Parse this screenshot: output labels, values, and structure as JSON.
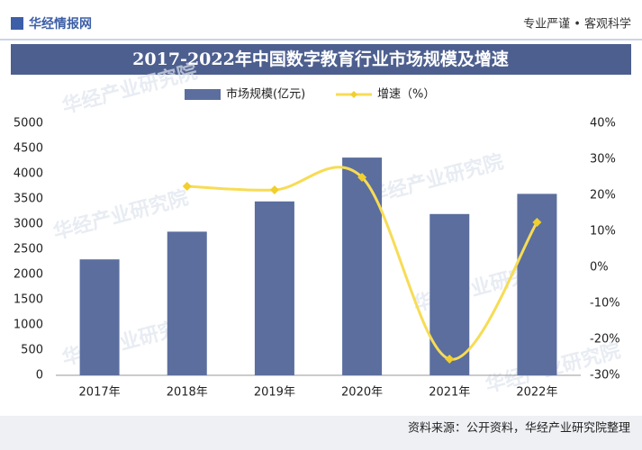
{
  "header": {
    "brand": "华经情报网",
    "slogan": "专业严谨 • 客观科学"
  },
  "chart_data": {
    "type": "bar_line",
    "title": "2017-2022年中国数字教育行业市场规模及增速",
    "categories": [
      "2017年",
      "2018年",
      "2019年",
      "2020年",
      "2021年",
      "2022年"
    ],
    "series": [
      {
        "name": "市场规模(亿元)",
        "type": "bar",
        "color": "#5b6e9e",
        "values": [
          2300,
          2850,
          3450,
          4320,
          3200,
          3600
        ]
      },
      {
        "name": "增速（%）",
        "type": "line",
        "axis": "y2",
        "color": "#f7dc55",
        "values": [
          null,
          22.5,
          21.5,
          25,
          -25.5,
          12.5
        ]
      }
    ],
    "ylim": [
      0,
      5000
    ],
    "yticks": [
      0,
      500,
      1000,
      1500,
      2000,
      2500,
      3000,
      3500,
      4000,
      4500,
      5000
    ],
    "y2lim": [
      -30,
      40
    ],
    "y2ticks": [
      {
        "value": -30,
        "label": "-30%"
      },
      {
        "value": -20,
        "label": "-20%"
      },
      {
        "value": -10,
        "label": "-10%"
      },
      {
        "value": 0,
        "label": "0%"
      },
      {
        "value": 10,
        "label": "10%"
      },
      {
        "value": 20,
        "label": "20%"
      },
      {
        "value": 30,
        "label": "30%"
      },
      {
        "value": 40,
        "label": "40%"
      }
    ],
    "grid": false,
    "legend": "top",
    "watermark": "华经产业研究院"
  },
  "footer": {
    "source": "资料来源：公开资料，华经产业研究院整理"
  }
}
